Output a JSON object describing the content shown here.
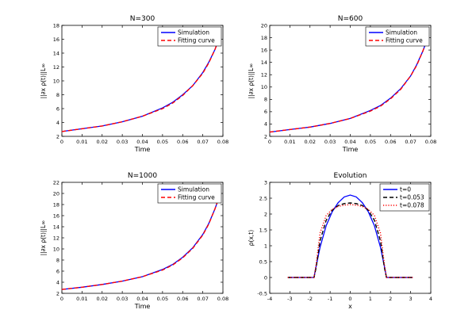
{
  "chart_data": [
    {
      "type": "line",
      "title": "N=300",
      "xlabel": "Time",
      "ylabel": "||∂x ρ(t)||L∞",
      "xlim": [
        0,
        0.08
      ],
      "ylim": [
        2,
        18
      ],
      "xticks": [
        "0",
        "0.01",
        "0.02",
        "0.03",
        "0.04",
        "0.05",
        "0.06",
        "0.07",
        "0.08"
      ],
      "yticks": [
        "2",
        "4",
        "6",
        "8",
        "10",
        "12",
        "14",
        "16",
        "18"
      ],
      "legend_position": "top-right",
      "series": [
        {
          "name": "Simulation",
          "color": "#0000ff",
          "dash": "solid",
          "x": [
            0,
            0.01,
            0.02,
            0.03,
            0.04,
            0.05,
            0.055,
            0.06,
            0.065,
            0.07,
            0.073,
            0.076,
            0.078
          ],
          "y": [
            2.7,
            3.1,
            3.5,
            4.1,
            4.9,
            6.1,
            6.9,
            8.0,
            9.3,
            11.2,
            12.7,
            14.5,
            16.0
          ]
        },
        {
          "name": "Fitting curve",
          "color": "#ff0000",
          "dash": "dashed",
          "x": [
            0,
            0.01,
            0.02,
            0.03,
            0.04,
            0.05,
            0.055,
            0.06,
            0.065,
            0.07,
            0.073,
            0.076,
            0.078
          ],
          "y": [
            2.7,
            3.1,
            3.5,
            4.1,
            4.9,
            6.0,
            6.8,
            7.9,
            9.3,
            11.1,
            12.6,
            14.5,
            16.0
          ]
        }
      ]
    },
    {
      "type": "line",
      "title": "N=600",
      "xlabel": "Time",
      "ylabel": "||∂x ρ(t)||L∞",
      "xlim": [
        0,
        0.08
      ],
      "ylim": [
        2,
        20
      ],
      "xticks": [
        "0",
        "0.01",
        "0.02",
        "0.03",
        "0.04",
        "0.05",
        "0.06",
        "0.07",
        "0.08"
      ],
      "yticks": [
        "2",
        "4",
        "6",
        "8",
        "10",
        "12",
        "14",
        "16",
        "18",
        "20"
      ],
      "legend_position": "top-right",
      "series": [
        {
          "name": "Simulation",
          "color": "#0000ff",
          "dash": "solid",
          "x": [
            0,
            0.01,
            0.02,
            0.03,
            0.04,
            0.05,
            0.055,
            0.06,
            0.065,
            0.07,
            0.073,
            0.076,
            0.078
          ],
          "y": [
            2.7,
            3.1,
            3.5,
            4.1,
            4.9,
            6.2,
            7.0,
            8.2,
            9.7,
            11.8,
            13.6,
            15.8,
            17.5
          ]
        },
        {
          "name": "Fitting curve",
          "color": "#ff0000",
          "dash": "dashed",
          "x": [
            0,
            0.01,
            0.02,
            0.03,
            0.04,
            0.05,
            0.055,
            0.06,
            0.065,
            0.07,
            0.073,
            0.076,
            0.078
          ],
          "y": [
            2.7,
            3.1,
            3.5,
            4.1,
            4.9,
            6.1,
            6.9,
            8.1,
            9.6,
            11.8,
            13.5,
            15.8,
            17.5
          ]
        }
      ]
    },
    {
      "type": "line",
      "title": "N=1000",
      "xlabel": "Time",
      "ylabel": "||∂x ρ(t)||L∞",
      "xlim": [
        0,
        0.08
      ],
      "ylim": [
        2,
        22
      ],
      "xticks": [
        "0",
        "0.01",
        "0.02",
        "0.03",
        "0.04",
        "0.05",
        "0.06",
        "0.07",
        "0.08"
      ],
      "yticks": [
        "2",
        "4",
        "6",
        "8",
        "10",
        "12",
        "14",
        "16",
        "18",
        "20",
        "22"
      ],
      "legend_position": "top-right",
      "series": [
        {
          "name": "Simulation",
          "color": "#0000ff",
          "dash": "solid",
          "x": [
            0,
            0.01,
            0.02,
            0.03,
            0.04,
            0.05,
            0.055,
            0.06,
            0.065,
            0.07,
            0.073,
            0.076,
            0.078
          ],
          "y": [
            2.7,
            3.1,
            3.6,
            4.2,
            5.0,
            6.3,
            7.2,
            8.5,
            10.2,
            12.6,
            14.6,
            17.2,
            19.2
          ]
        },
        {
          "name": "Fitting curve",
          "color": "#ff0000",
          "dash": "dashed",
          "x": [
            0,
            0.01,
            0.02,
            0.03,
            0.04,
            0.05,
            0.055,
            0.06,
            0.065,
            0.07,
            0.073,
            0.076,
            0.078
          ],
          "y": [
            2.7,
            3.1,
            3.6,
            4.2,
            5.0,
            6.2,
            7.1,
            8.4,
            10.1,
            12.5,
            14.5,
            17.2,
            19.2
          ]
        }
      ]
    },
    {
      "type": "line",
      "title": "Evolution",
      "xlabel": "x",
      "ylabel": "ρ(x,t)",
      "xlim": [
        -4,
        4
      ],
      "ylim": [
        -0.5,
        3
      ],
      "xticks": [
        "-4",
        "-3",
        "-2",
        "-1",
        "0",
        "1",
        "2",
        "3",
        "4"
      ],
      "yticks": [
        "-0.5",
        "0",
        "0.5",
        "1",
        "1.5",
        "2",
        "2.5",
        "3"
      ],
      "legend_position": "top-right",
      "series": [
        {
          "name": "t=0",
          "color": "#0000ff",
          "dash": "solid",
          "x": [
            -3.1,
            -1.8,
            -1.7,
            -1.5,
            -1.2,
            -0.9,
            -0.6,
            -0.3,
            0,
            0.3,
            0.6,
            0.9,
            1.2,
            1.5,
            1.7,
            1.8,
            3.1
          ],
          "y": [
            0,
            0,
            0.34,
            0.95,
            1.63,
            2.07,
            2.36,
            2.54,
            2.6,
            2.54,
            2.36,
            2.07,
            1.63,
            0.95,
            0.34,
            0,
            0
          ]
        },
        {
          "name": "t=0.053",
          "color": "#000000",
          "dash": "dashed",
          "x": [
            -3.1,
            -1.8,
            -1.7,
            -1.5,
            -1.2,
            -0.9,
            -0.6,
            -0.3,
            0,
            0.3,
            0.6,
            0.9,
            1.2,
            1.5,
            1.7,
            1.8,
            3.1
          ],
          "y": [
            0,
            0,
            0.3,
            1.15,
            1.8,
            2.12,
            2.27,
            2.33,
            2.35,
            2.33,
            2.27,
            2.12,
            1.8,
            1.15,
            0.3,
            0,
            0
          ]
        },
        {
          "name": "t=0.078",
          "color": "#ff0000",
          "dash": "dotted",
          "x": [
            -3.1,
            -1.8,
            -1.7,
            -1.5,
            -1.2,
            -0.9,
            -0.6,
            -0.3,
            0,
            0.3,
            0.6,
            0.9,
            1.2,
            1.5,
            1.7,
            1.8,
            3.1
          ],
          "y": [
            0,
            0,
            0.4,
            1.4,
            1.95,
            2.15,
            2.24,
            2.28,
            2.3,
            2.28,
            2.24,
            2.15,
            1.95,
            1.4,
            0.4,
            0,
            0
          ]
        }
      ]
    }
  ]
}
